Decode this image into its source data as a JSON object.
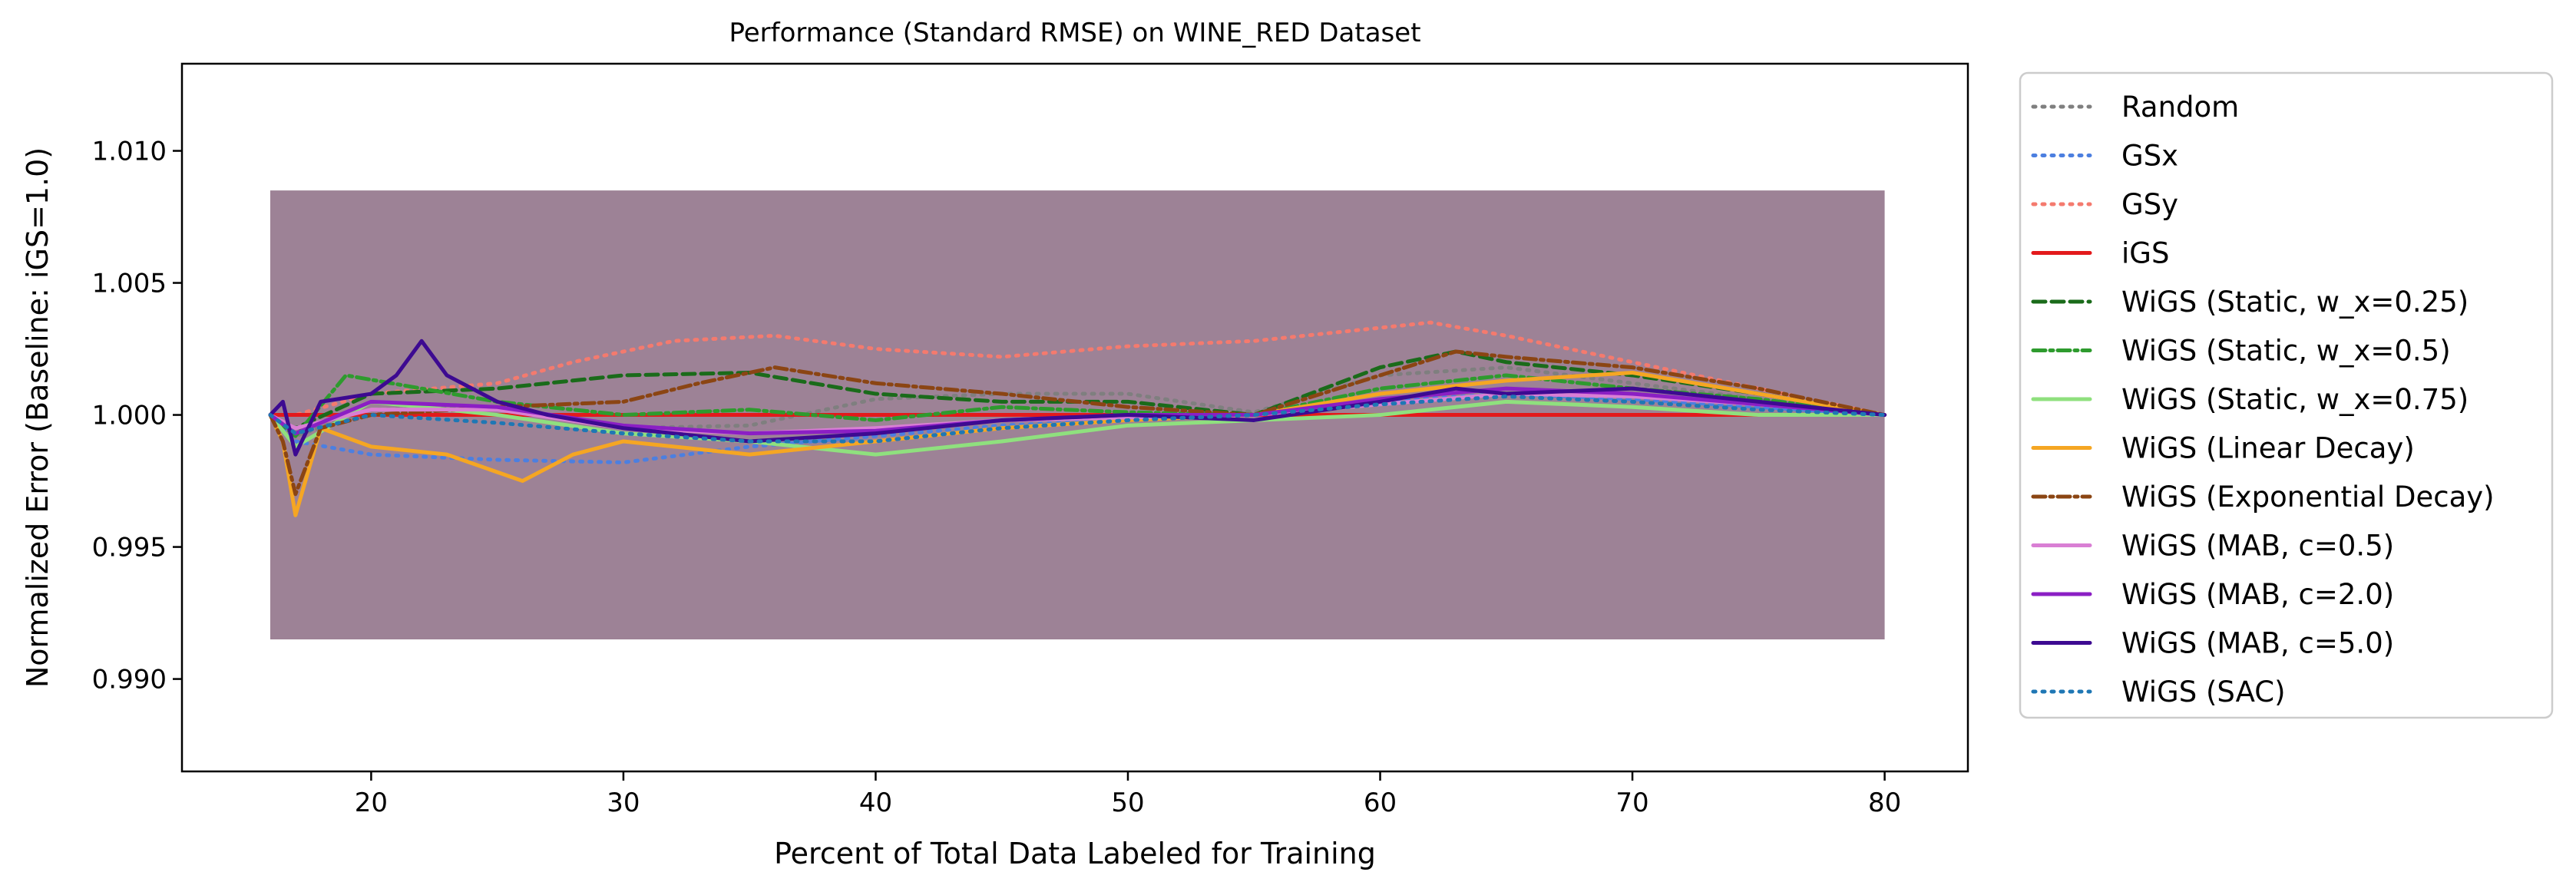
{
  "chart_data": {
    "type": "line",
    "title": "Performance (Standard RMSE) on WINE_RED Dataset",
    "xlabel": "Percent of Total Data Labeled for Training",
    "ylabel": "Normalized Error (Baseline: iGS=1.0)",
    "xlim": [
      12.5,
      83.3
    ],
    "ylim": [
      0.9865,
      1.0133
    ],
    "xticks": [
      20,
      30,
      40,
      50,
      60,
      70,
      80
    ],
    "xtick_labels": [
      "20",
      "30",
      "40",
      "50",
      "60",
      "70",
      "80"
    ],
    "yticks": [
      0.99,
      0.995,
      1.0,
      1.005,
      1.01
    ],
    "ytick_labels": [
      "0.990",
      "0.995",
      "1.000",
      "1.005",
      "1.010"
    ],
    "grid": false,
    "legend_position": "outside-right",
    "band": {
      "x": [
        16,
        80
      ],
      "upper": [
        1.0085,
        1.0085
      ],
      "lower": [
        0.9915,
        0.9915
      ],
      "color": "#9d8296"
    },
    "series": [
      {
        "name": "Random",
        "color": "#7f7f7f",
        "dash": "dotted",
        "x": [
          16,
          17,
          20,
          25,
          30,
          35,
          40,
          45,
          50,
          55,
          60,
          65,
          70,
          75,
          80
        ],
        "y": [
          1.0,
          0.9992,
          1.0002,
          1.0003,
          0.9995,
          0.9996,
          1.0006,
          1.0008,
          1.0008,
          1.0001,
          1.0015,
          1.0018,
          1.0012,
          1.0006,
          1.0
        ]
      },
      {
        "name": "GSx",
        "color": "#4c7fe0",
        "dash": "dotted",
        "x": [
          16,
          17,
          20,
          25,
          30,
          35,
          40,
          45,
          50,
          55,
          60,
          65,
          70,
          75,
          80
        ],
        "y": [
          1.0,
          0.999,
          0.9985,
          0.9983,
          0.9982,
          0.9988,
          0.9992,
          0.9996,
          0.9998,
          1.0,
          1.0005,
          1.0008,
          1.0006,
          1.0003,
          1.0
        ]
      },
      {
        "name": "GSy",
        "color": "#f47a6e",
        "dash": "dotted",
        "x": [
          16,
          17,
          20,
          25,
          28,
          32,
          36,
          40,
          45,
          50,
          55,
          60,
          62,
          65,
          68,
          70,
          75,
          80
        ],
        "y": [
          1.0,
          1.0,
          1.0008,
          1.0012,
          1.002,
          1.0028,
          1.003,
          1.0025,
          1.0022,
          1.0026,
          1.0028,
          1.0033,
          1.0035,
          1.003,
          1.0024,
          1.002,
          1.001,
          1.0
        ]
      },
      {
        "name": "iGS",
        "color": "#e31a1c",
        "dash": "solid",
        "x": [
          16,
          80
        ],
        "y": [
          1.0,
          1.0
        ]
      },
      {
        "name": "WiGS (Static, w_x=0.25)",
        "color": "#1a6b1a",
        "dash": "dashed",
        "x": [
          16,
          17,
          20,
          25,
          30,
          35,
          40,
          45,
          50,
          55,
          60,
          63,
          65,
          70,
          75,
          80
        ],
        "y": [
          1.0,
          0.9995,
          1.0008,
          1.001,
          1.0015,
          1.0016,
          1.0008,
          1.0005,
          1.0005,
          1.0,
          1.0018,
          1.0024,
          1.002,
          1.0015,
          1.0008,
          1.0
        ]
      },
      {
        "name": "WiGS (Static, w_x=0.5)",
        "color": "#2e9b2e",
        "dash": "dashdot",
        "x": [
          16,
          17,
          19,
          22,
          25,
          30,
          35,
          40,
          45,
          50,
          55,
          60,
          65,
          70,
          75,
          80
        ],
        "y": [
          1.0,
          0.9992,
          1.0015,
          1.001,
          1.0005,
          1.0,
          1.0002,
          0.9998,
          1.0003,
          1.0001,
          1.0,
          1.001,
          1.0015,
          1.001,
          1.0006,
          1.0
        ]
      },
      {
        "name": "WiGS (Static, w_x=0.75)",
        "color": "#8fe07e",
        "dash": "solid",
        "x": [
          16,
          17,
          20,
          25,
          30,
          35,
          40,
          45,
          50,
          55,
          60,
          65,
          70,
          75,
          80
        ],
        "y": [
          1.0,
          0.9988,
          1.0005,
          1.0,
          0.9993,
          0.999,
          0.9985,
          0.999,
          0.9996,
          0.9998,
          1.0,
          1.0005,
          1.0003,
          1.0,
          1.0
        ]
      },
      {
        "name": "WiGS (Linear Decay)",
        "color": "#f5a623",
        "dash": "solid",
        "x": [
          16,
          16.5,
          17,
          18,
          20,
          23,
          26,
          28,
          30,
          35,
          40,
          45,
          50,
          55,
          60,
          65,
          70,
          75,
          80
        ],
        "y": [
          1.0,
          0.999,
          0.9962,
          0.9995,
          0.9988,
          0.9985,
          0.9975,
          0.9985,
          0.999,
          0.9985,
          0.999,
          0.9995,
          0.9998,
          1.0,
          1.0008,
          1.0013,
          1.0016,
          1.0008,
          1.0
        ]
      },
      {
        "name": "WiGS (Exponential Decay)",
        "color": "#8b4513",
        "dash": "dashdot",
        "x": [
          16,
          16.5,
          17,
          18,
          20,
          25,
          30,
          33,
          36,
          40,
          45,
          50,
          55,
          60,
          63,
          65,
          70,
          75,
          80
        ],
        "y": [
          1.0,
          0.999,
          0.997,
          0.9995,
          1.0,
          1.0003,
          1.0005,
          1.0012,
          1.0018,
          1.0012,
          1.0008,
          1.0003,
          1.0,
          1.0015,
          1.0024,
          1.0022,
          1.0018,
          1.001,
          1.0
        ]
      },
      {
        "name": "WiGS (MAB, c=0.5)",
        "color": "#d97fd4",
        "dash": "solid",
        "x": [
          16,
          17,
          20,
          25,
          30,
          35,
          40,
          45,
          50,
          55,
          60,
          65,
          70,
          75,
          80
        ],
        "y": [
          1.0,
          0.9995,
          1.0002,
          1.0002,
          0.9995,
          0.9993,
          0.9995,
          0.9998,
          0.9999,
          1.0,
          1.0004,
          1.0008,
          1.0007,
          1.0004,
          1.0
        ]
      },
      {
        "name": "WiGS (MAB, c=2.0)",
        "color": "#8b1fc4",
        "dash": "solid",
        "x": [
          16,
          17,
          20,
          25,
          30,
          35,
          40,
          45,
          50,
          55,
          60,
          65,
          70,
          75,
          80
        ],
        "y": [
          1.0,
          0.9993,
          1.0005,
          1.0003,
          0.9996,
          0.9993,
          0.9994,
          0.9998,
          1.0,
          1.0,
          1.0006,
          1.001,
          1.0008,
          1.0004,
          1.0
        ]
      },
      {
        "name": "WiGS (MAB, c=5.0)",
        "color": "#3d0a91",
        "dash": "solid",
        "x": [
          16,
          16.5,
          17,
          18,
          20,
          21,
          22,
          23,
          25,
          27,
          30,
          35,
          40,
          45,
          50,
          55,
          60,
          63,
          65,
          70,
          75,
          80
        ],
        "y": [
          1.0,
          1.0005,
          0.9985,
          1.0005,
          1.0008,
          1.0015,
          1.0028,
          1.0015,
          1.0005,
          1.0,
          0.9995,
          0.999,
          0.9993,
          0.9998,
          1.0,
          0.9998,
          1.0005,
          1.001,
          1.0008,
          1.001,
          1.0005,
          1.0
        ]
      },
      {
        "name": "WiGS (SAC)",
        "color": "#1f77b4",
        "dash": "dotted",
        "x": [
          16,
          17,
          20,
          25,
          30,
          35,
          40,
          45,
          50,
          55,
          60,
          65,
          70,
          75,
          80
        ],
        "y": [
          1.0,
          0.9993,
          1.0,
          0.9997,
          0.9993,
          0.999,
          0.999,
          0.9995,
          0.9998,
          1.0,
          1.0004,
          1.0007,
          1.0005,
          1.0002,
          1.0
        ]
      }
    ]
  }
}
